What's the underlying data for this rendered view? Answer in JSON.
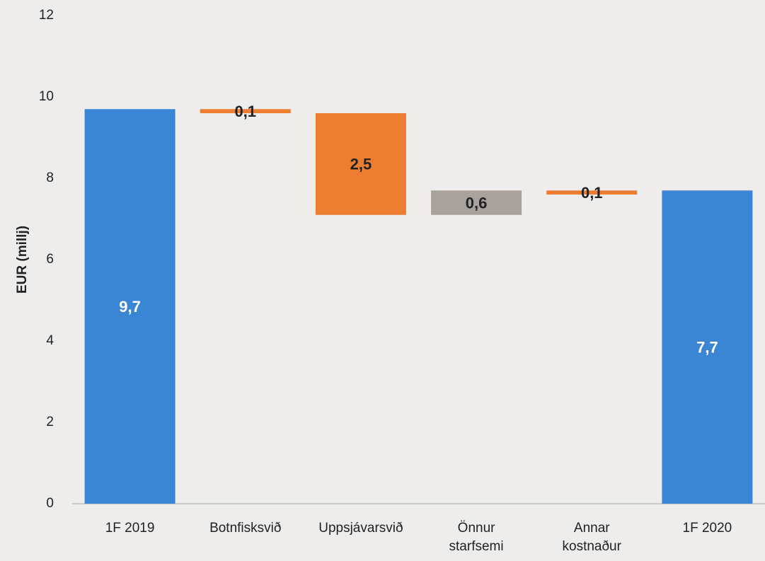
{
  "chart_data": {
    "type": "waterfall",
    "y_label": "EUR (millj)",
    "categories": [
      "1F 2019",
      "Botnfisksvið",
      "Uppsjávarsvið",
      "Önnur\nstarfsemi",
      "Annar\nkostnaður",
      "1F 2020"
    ],
    "values": [
      9.7,
      -0.1,
      -2.5,
      0.6,
      -0.1,
      7.7
    ],
    "value_labels": [
      "9,7",
      "0,1",
      "2,5",
      "0,6",
      "0,1",
      "7,7"
    ],
    "measure": [
      "total",
      "relative",
      "relative",
      "relative",
      "relative",
      "total"
    ],
    "colors": {
      "total": "#3a86d4",
      "decrease": "#ed7d31",
      "increase": "#a9a19b"
    },
    "ylim": [
      0,
      12
    ],
    "yticks": [
      0,
      2,
      4,
      6,
      8,
      10,
      12
    ],
    "grid": false
  }
}
